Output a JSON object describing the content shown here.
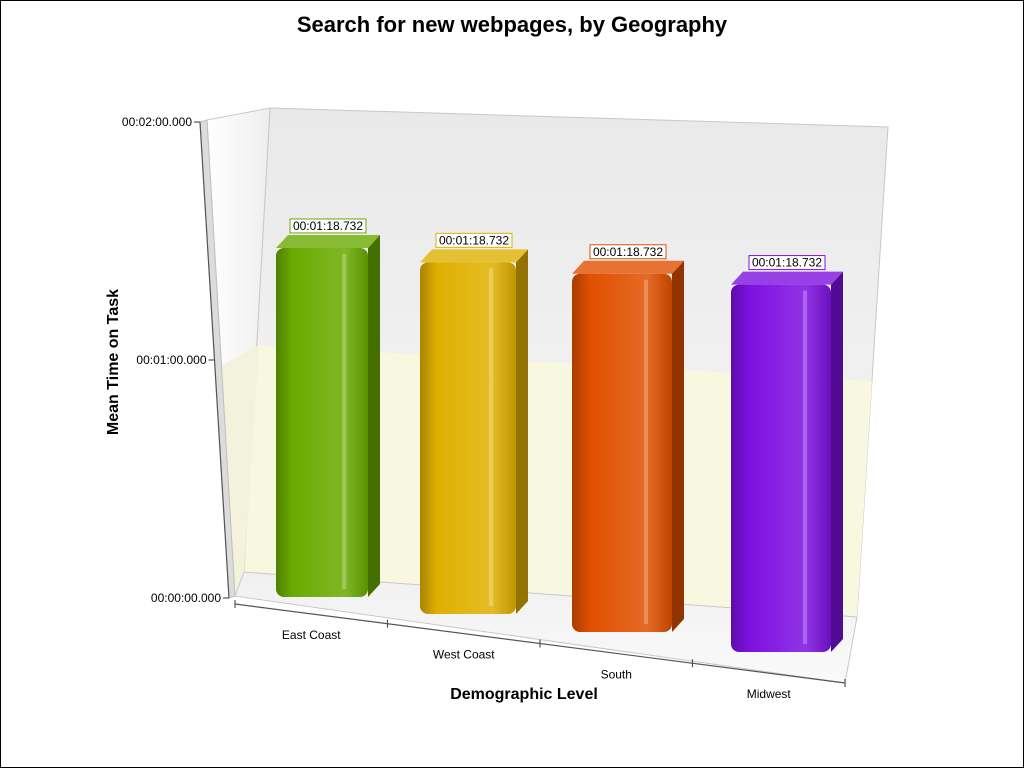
{
  "chart_data": {
    "type": "bar",
    "title": "Search for new webpages, by Geography",
    "xlabel": "Demographic Level",
    "ylabel": "Mean Time on Task",
    "categories": [
      "East Coast",
      "West Coast",
      "South",
      "Midwest"
    ],
    "values": [
      78.732,
      78.732,
      78.732,
      78.732
    ],
    "value_labels": [
      "00:01:18.732",
      "00:01:18.732",
      "00:01:18.732",
      "00:01:18.732"
    ],
    "ylim": [
      0,
      120
    ],
    "yticks": [
      0,
      60,
      120
    ],
    "ytick_labels": [
      "00:00:00.000",
      "00:01:00.000",
      "00:02:00.000"
    ],
    "bar_colors": [
      "#6aaa00",
      "#e0b000",
      "#e05000",
      "#7d10e0"
    ],
    "label_border_colors": [
      "#6aaa00",
      "#e0b000",
      "#e05000",
      "#7d10e0"
    ],
    "grid": false,
    "legend": "none"
  }
}
